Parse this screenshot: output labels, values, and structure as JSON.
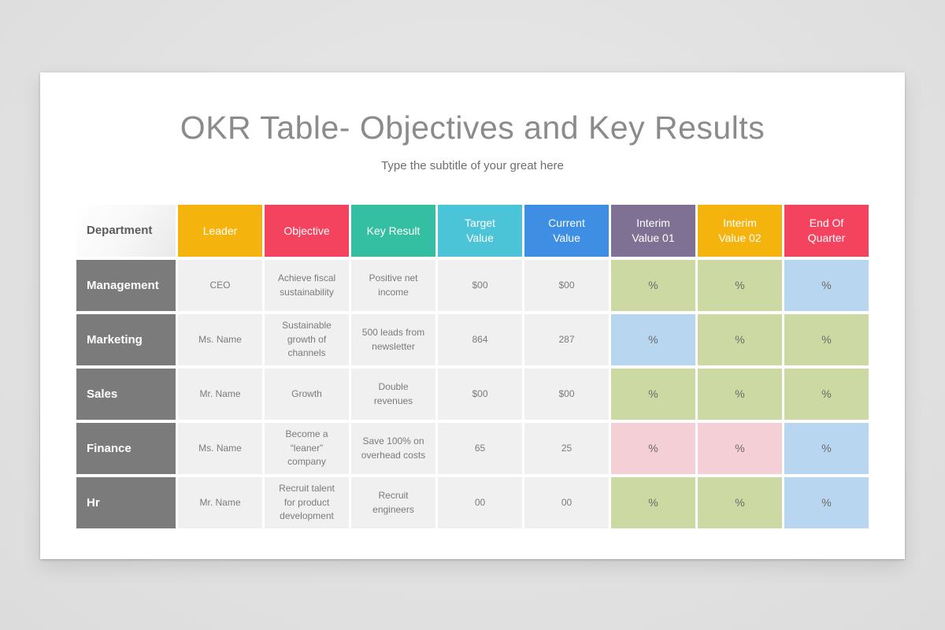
{
  "slide": {
    "title": "OKR Table- Objectives and Key Results",
    "subtitle": "Type the subtitle of your great here"
  },
  "table": {
    "header": {
      "department": {
        "label": "Department"
      },
      "leader": {
        "label": "Leader",
        "color": "#F5B40D"
      },
      "objective": {
        "label": "Objective",
        "color": "#F4435F"
      },
      "key_result": {
        "label": "Key Result",
        "color": "#35BFA2"
      },
      "target_value": {
        "label": "Target Value",
        "color": "#4AC4D6"
      },
      "current_value": {
        "label": "Current Value",
        "color": "#3E8EE4"
      },
      "interim_01": {
        "label": "Interim Value 01",
        "color": "#7E7193"
      },
      "interim_02": {
        "label": "Interim Value 02",
        "color": "#F5B40D"
      },
      "end_of_quarter": {
        "label": "End Of Quarter",
        "color": "#F4435F"
      }
    },
    "status_colors": {
      "green": "#CCD9A2",
      "blue": "#B8D6EF",
      "pink": "#F4CFD6"
    },
    "rows": [
      {
        "department": "Management",
        "leader": "CEO",
        "objective": "Achieve fiscal sustainability",
        "key_result": "Positive net income",
        "target_value": "$00",
        "current_value": "$00",
        "interim_01": {
          "value": "%",
          "status": "green"
        },
        "interim_02": {
          "value": "%",
          "status": "green"
        },
        "end_of_quarter": {
          "value": "%",
          "status": "blue"
        }
      },
      {
        "department": "Marketing",
        "leader": "Ms. Name",
        "objective": "Sustainable growth of channels",
        "key_result": "500 leads from newsletter",
        "target_value": "864",
        "current_value": "287",
        "interim_01": {
          "value": "%",
          "status": "blue"
        },
        "interim_02": {
          "value": "%",
          "status": "green"
        },
        "end_of_quarter": {
          "value": "%",
          "status": "green"
        }
      },
      {
        "department": "Sales",
        "leader": "Mr. Name",
        "objective": "Growth",
        "key_result": "Double revenues",
        "target_value": "$00",
        "current_value": "$00",
        "interim_01": {
          "value": "%",
          "status": "green"
        },
        "interim_02": {
          "value": "%",
          "status": "green"
        },
        "end_of_quarter": {
          "value": "%",
          "status": "green"
        }
      },
      {
        "department": "Finance",
        "leader": "Ms. Name",
        "objective": "Become a “leaner” company",
        "key_result": "Save 100% on overhead costs",
        "target_value": "65",
        "current_value": "25",
        "interim_01": {
          "value": "%",
          "status": "pink"
        },
        "interim_02": {
          "value": "%",
          "status": "pink"
        },
        "end_of_quarter": {
          "value": "%",
          "status": "blue"
        }
      },
      {
        "department": "Hr",
        "leader": "Mr. Name",
        "objective": "Recruit talent for product development",
        "key_result": "Recruit engineers",
        "target_value": "00",
        "current_value": "00",
        "interim_01": {
          "value": "%",
          "status": "green"
        },
        "interim_02": {
          "value": "%",
          "status": "green"
        },
        "end_of_quarter": {
          "value": "%",
          "status": "blue"
        }
      }
    ]
  }
}
